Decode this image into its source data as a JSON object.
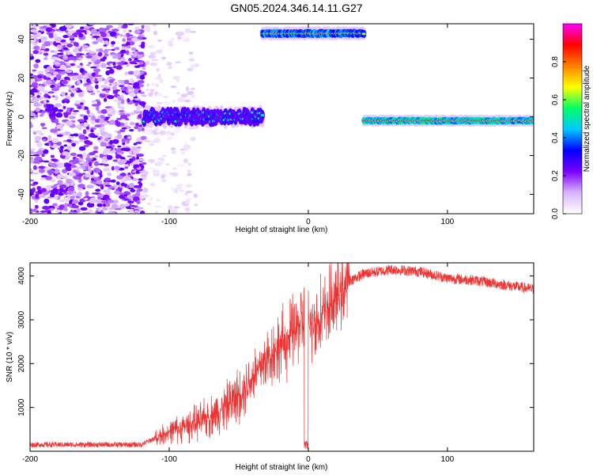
{
  "title": "GN05.2024.346.14.11.G27",
  "chart_data": [
    {
      "type": "heatmap",
      "name": "spectrogram",
      "xlabel": "Height of straight line (km)",
      "ylabel": "Frequency (Hz)",
      "xlim": [
        -200,
        162
      ],
      "ylim": [
        -50,
        48
      ],
      "xticks": [
        -200,
        -100,
        0,
        100
      ],
      "yticks": [
        -40,
        -20,
        0,
        20,
        40
      ],
      "colorbar": {
        "label": "Normalized spectral amplitude",
        "range": [
          0,
          1
        ],
        "ticks": [
          0.0,
          0.2,
          0.4,
          0.6,
          0.8
        ],
        "colors": [
          "#ffffff",
          "#d9b3ff",
          "#7a00ff",
          "#0000ff",
          "#00c8ff",
          "#00ff66",
          "#ffff00",
          "#ff8000",
          "#ff0000",
          "#ff00ff"
        ]
      },
      "features": [
        {
          "x_range": [
            -200,
            -118
          ],
          "freq_range": [
            -50,
            48
          ],
          "amplitude": 0.15,
          "kind": "noise"
        },
        {
          "x_range": [
            -118,
            -80
          ],
          "freq_range": [
            -50,
            48
          ],
          "amplitude": 0.05,
          "kind": "sparse noise"
        },
        {
          "x_range": [
            -118,
            -33
          ],
          "freq_center": 0,
          "freq_width": 7,
          "amplitude": 0.35,
          "kind": "signal"
        },
        {
          "x_range": [
            -33,
            40
          ],
          "freq_center": 43,
          "freq_width": 5,
          "amplitude": 0.75,
          "kind": "aliased tone"
        },
        {
          "x_range": [
            40,
            162
          ],
          "freq_center": -2,
          "freq_width": 4,
          "amplitude": 0.9,
          "kind": "tone"
        }
      ]
    },
    {
      "type": "line",
      "name": "snr",
      "xlabel": "Height of straight line (km)",
      "ylabel": "SNR (10 * v/v)",
      "xlim": [
        -200,
        162
      ],
      "ylim": [
        0,
        4300
      ],
      "xticks": [
        -200,
        -100,
        0,
        100
      ],
      "yticks": [
        1000,
        2000,
        3000,
        4000
      ],
      "color": "#ee3333",
      "x": [
        -200,
        -150,
        -120,
        -110,
        -100,
        -90,
        -80,
        -70,
        -60,
        -50,
        -40,
        -30,
        -20,
        -10,
        -5,
        0,
        10,
        20,
        30,
        40,
        60,
        80,
        100,
        120,
        140,
        162
      ],
      "y": [
        150,
        150,
        150,
        300,
        450,
        550,
        650,
        800,
        1000,
        1300,
        1700,
        2100,
        2400,
        2700,
        3000,
        2800,
        3100,
        3500,
        3900,
        4050,
        4150,
        4100,
        3950,
        3900,
        3800,
        3700
      ]
    }
  ]
}
